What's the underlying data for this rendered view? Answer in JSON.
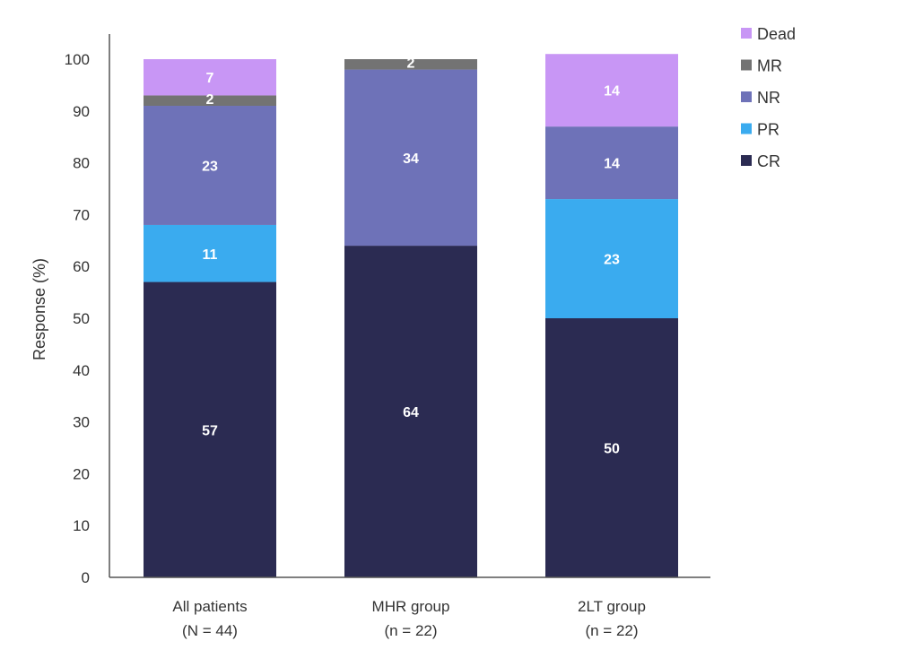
{
  "chart_data": {
    "type": "bar",
    "stacked": true,
    "title": "",
    "xlabel": "",
    "ylabel": "Response (%)",
    "ylim": [
      0,
      100
    ],
    "yticks": [
      0,
      10,
      20,
      30,
      40,
      50,
      60,
      70,
      80,
      90,
      100
    ],
    "grid": false,
    "legend_position": "top-right",
    "categories": [
      {
        "line1": "All patients",
        "line2": "(N = 44)"
      },
      {
        "line1": "MHR group",
        "line2": "(n = 22)"
      },
      {
        "line1": "2LT group",
        "line2": "(n = 22)"
      }
    ],
    "series": [
      {
        "name": "CR",
        "color": "#2b2b52",
        "values": [
          57,
          64,
          50
        ]
      },
      {
        "name": "PR",
        "color": "#3aabef",
        "values": [
          11,
          0,
          23
        ]
      },
      {
        "name": "NR",
        "color": "#6e72b8",
        "values": [
          23,
          34,
          14
        ]
      },
      {
        "name": "MR",
        "color": "#737373",
        "values": [
          2,
          2,
          0
        ]
      },
      {
        "name": "Dead",
        "color": "#c896f5",
        "values": [
          7,
          0,
          14
        ]
      }
    ],
    "legend_order": [
      "Dead",
      "MR",
      "NR",
      "PR",
      "CR"
    ]
  }
}
